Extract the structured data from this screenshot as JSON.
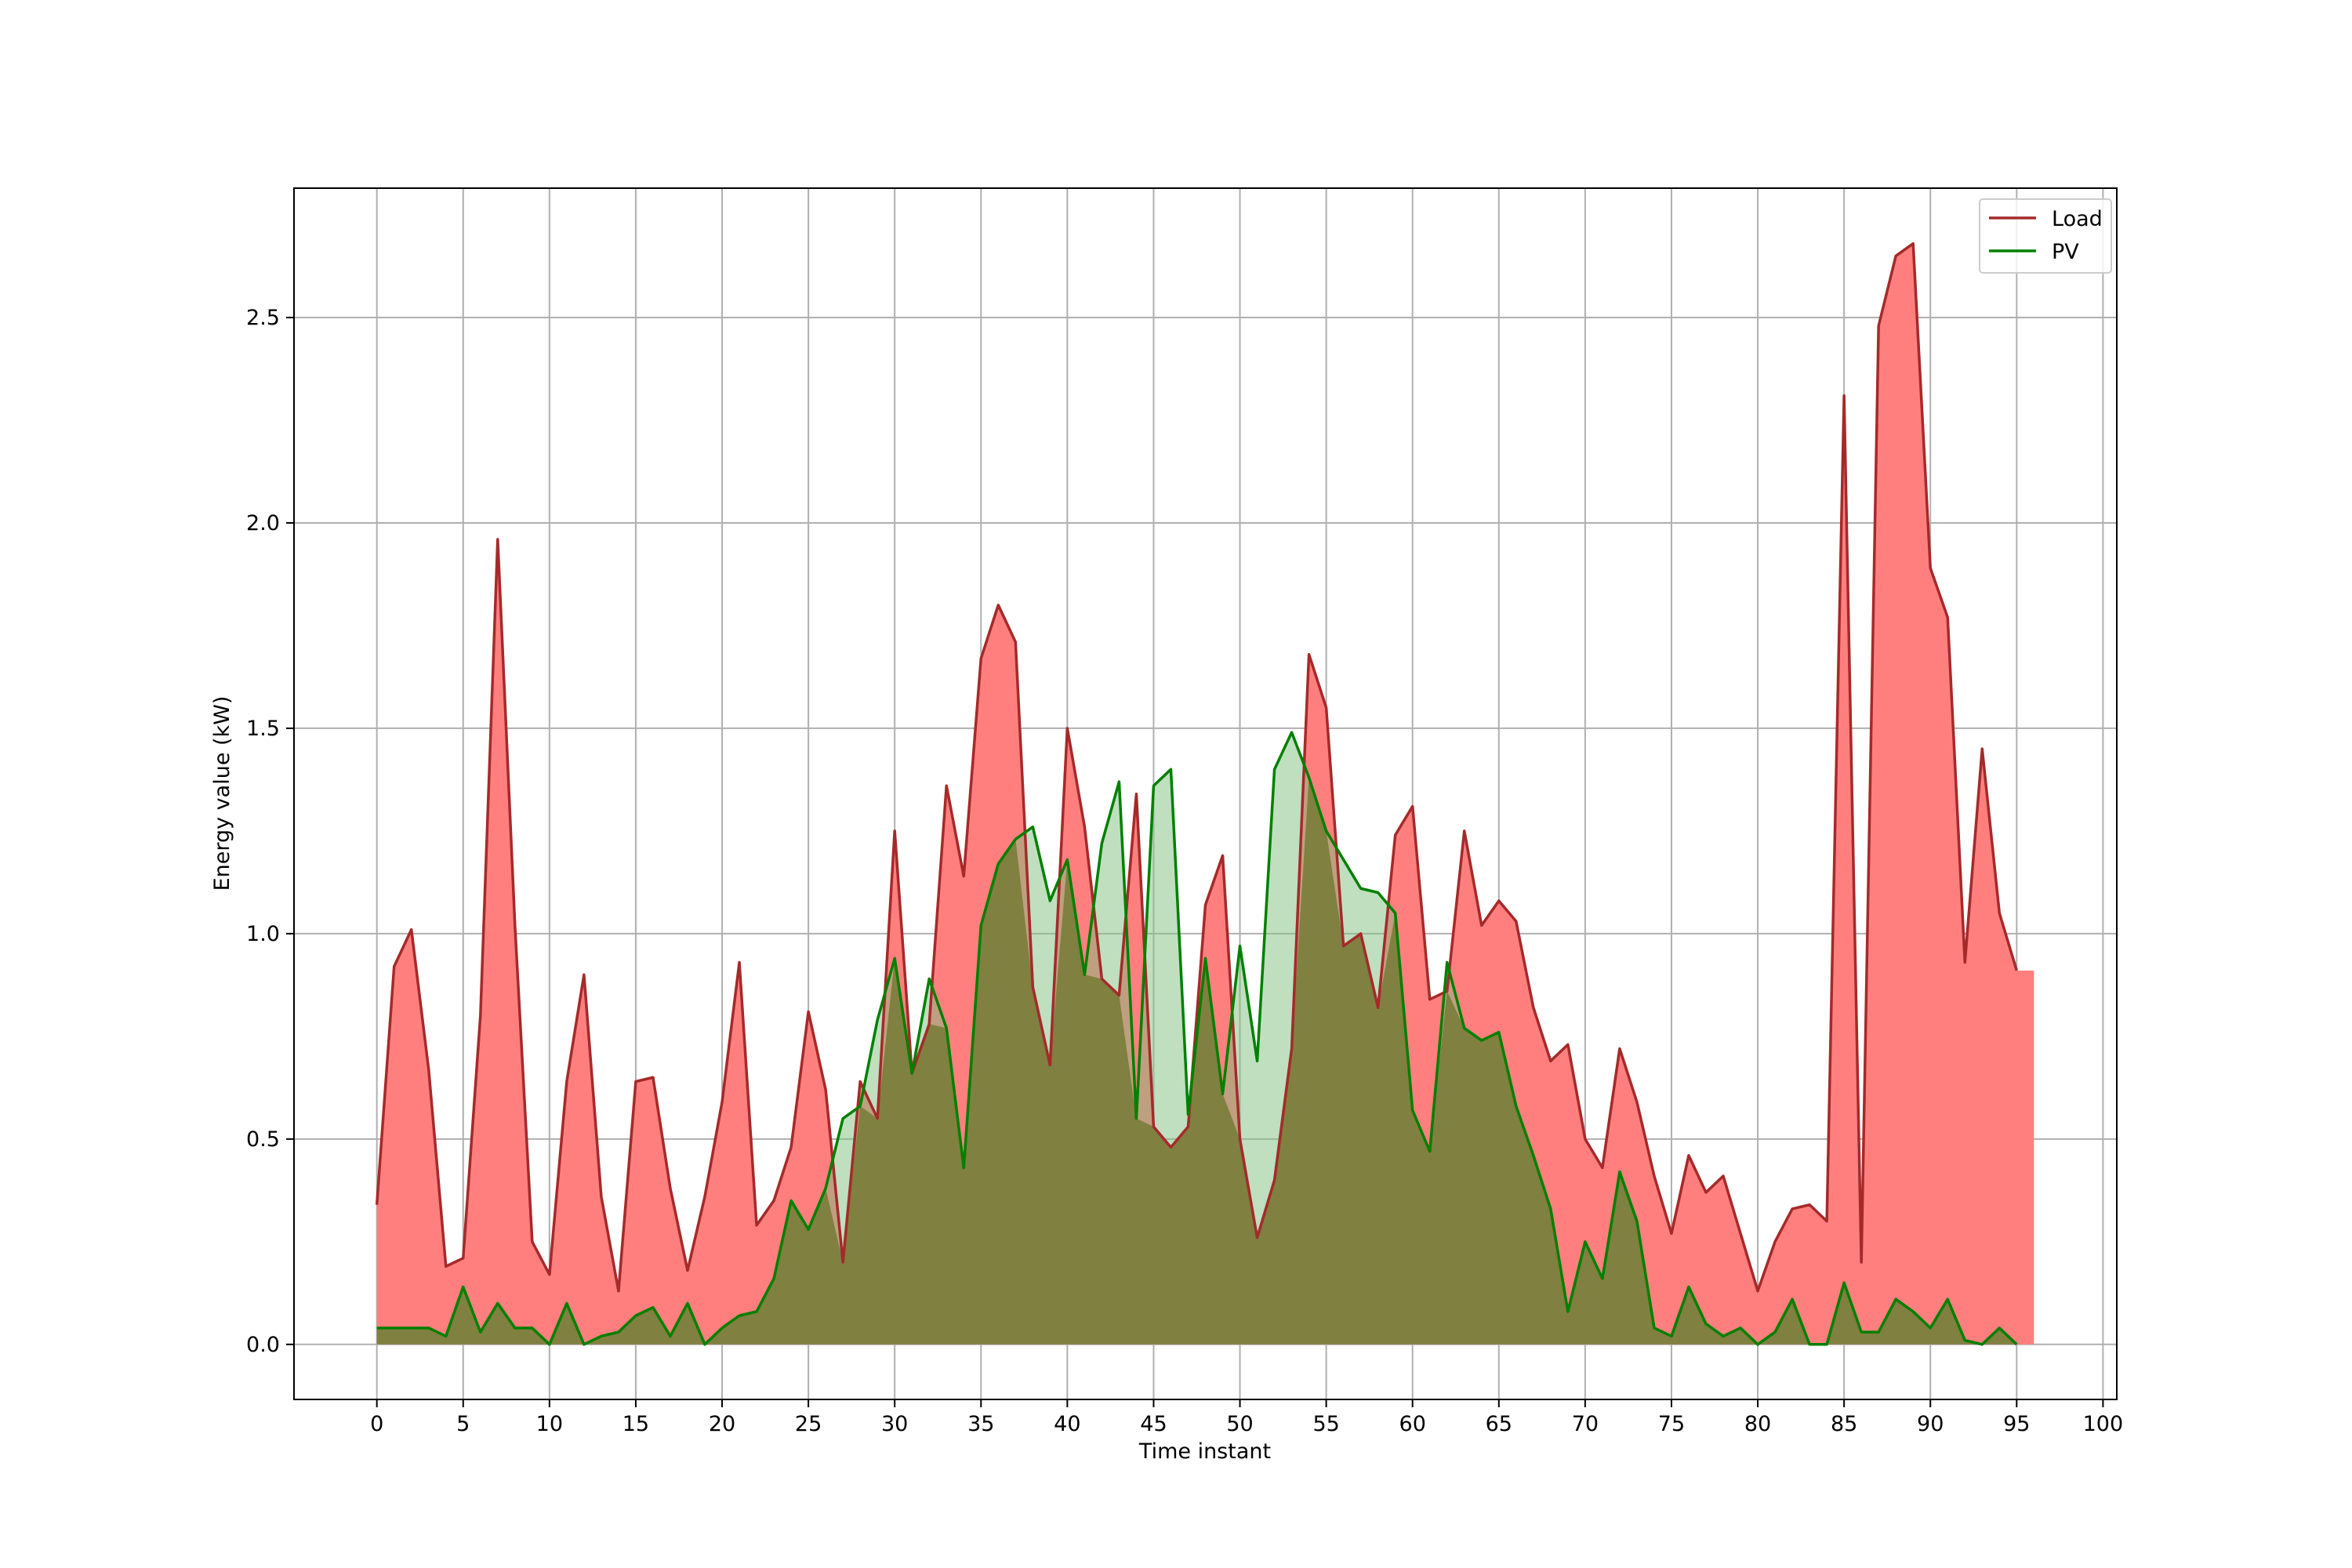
{
  "chart_data": {
    "type": "area",
    "title": "",
    "xlabel": "Time instant",
    "ylabel": "Energy value (kW)",
    "xlim": [
      -4.8,
      100.8
    ],
    "ylim": [
      -0.134,
      2.815
    ],
    "grid": true,
    "legend_position": "top-right",
    "xticks": [
      0,
      5,
      10,
      15,
      20,
      25,
      30,
      35,
      40,
      45,
      50,
      55,
      60,
      65,
      70,
      75,
      80,
      85,
      90,
      95,
      100
    ],
    "yticks": [
      0.0,
      0.5,
      1.0,
      1.5,
      2.0,
      2.5
    ],
    "ytick_labels": [
      "0.0",
      "0.5",
      "1.0",
      "1.5",
      "2.0",
      "2.5"
    ],
    "x": [
      0,
      1,
      2,
      3,
      4,
      5,
      6,
      7,
      8,
      9,
      10,
      11,
      12,
      13,
      14,
      15,
      16,
      17,
      18,
      19,
      20,
      21,
      22,
      23,
      24,
      25,
      26,
      27,
      28,
      29,
      30,
      31,
      32,
      33,
      34,
      35,
      36,
      37,
      38,
      39,
      40,
      41,
      42,
      43,
      44,
      45,
      46,
      47,
      48,
      49,
      50,
      51,
      52,
      53,
      54,
      55,
      56,
      57,
      58,
      59,
      60,
      61,
      62,
      63,
      64,
      65,
      66,
      67,
      68,
      69,
      70,
      71,
      72,
      73,
      74,
      75,
      76,
      77,
      78,
      79,
      80,
      81,
      82,
      83,
      84,
      85,
      86,
      87,
      88,
      89,
      90,
      91,
      92,
      93,
      94,
      95
    ],
    "series": [
      {
        "name": "Load",
        "line_color": "#a52a2a",
        "fill_color": "#ff7f7f",
        "fill_extends_to": 96,
        "values": [
          0.34,
          0.92,
          1.01,
          0.67,
          0.19,
          0.21,
          0.8,
          1.96,
          1.02,
          0.25,
          0.17,
          0.64,
          0.9,
          0.36,
          0.13,
          0.64,
          0.65,
          0.38,
          0.18,
          0.36,
          0.59,
          0.93,
          0.29,
          0.35,
          0.48,
          0.81,
          0.62,
          0.2,
          0.64,
          0.55,
          1.25,
          0.66,
          0.78,
          1.36,
          1.14,
          1.67,
          1.8,
          1.71,
          0.87,
          0.68,
          1.5,
          1.26,
          0.89,
          0.85,
          1.34,
          0.53,
          0.48,
          0.53,
          1.07,
          1.19,
          0.5,
          0.26,
          0.4,
          0.72,
          1.68,
          1.55,
          0.97,
          1.0,
          0.82,
          1.24,
          1.31,
          0.84,
          0.86,
          1.25,
          1.02,
          1.08,
          1.03,
          0.82,
          0.69,
          0.73,
          0.5,
          0.43,
          0.72,
          0.59,
          0.41,
          0.27,
          0.46,
          0.37,
          0.41,
          0.27,
          0.13,
          0.25,
          0.33,
          0.34,
          0.3,
          2.31,
          0.2,
          2.48,
          2.65,
          2.68,
          1.89,
          1.77,
          0.93,
          1.45,
          1.05,
          0.91
        ]
      },
      {
        "name": "PV",
        "line_color": "#008000",
        "fill_color": "#7fbf7f",
        "values": [
          0.04,
          0.04,
          0.04,
          0.04,
          0.02,
          0.14,
          0.03,
          0.1,
          0.04,
          0.04,
          0.0,
          0.1,
          0.0,
          0.02,
          0.03,
          0.07,
          0.09,
          0.02,
          0.1,
          0.0,
          0.04,
          0.07,
          0.08,
          0.16,
          0.35,
          0.28,
          0.38,
          0.55,
          0.58,
          0.79,
          0.94,
          0.66,
          0.89,
          0.77,
          0.43,
          1.02,
          1.17,
          1.23,
          1.26,
          1.08,
          1.18,
          0.9,
          1.22,
          1.37,
          0.55,
          1.36,
          1.4,
          0.56,
          0.94,
          0.61,
          0.97,
          0.69,
          1.4,
          1.49,
          1.38,
          1.25,
          1.18,
          1.11,
          1.1,
          1.05,
          0.57,
          0.47,
          0.93,
          0.77,
          0.74,
          0.76,
          0.58,
          0.46,
          0.33,
          0.08,
          0.25,
          0.16,
          0.42,
          0.3,
          0.04,
          0.02,
          0.14,
          0.05,
          0.02,
          0.04,
          0.0,
          0.03,
          0.11,
          0.0,
          0.0,
          0.15,
          0.03,
          0.03,
          0.11,
          0.08,
          0.04,
          0.11,
          0.01,
          0.0,
          0.04,
          0.0
        ]
      }
    ],
    "overlap_color": "#808040"
  }
}
